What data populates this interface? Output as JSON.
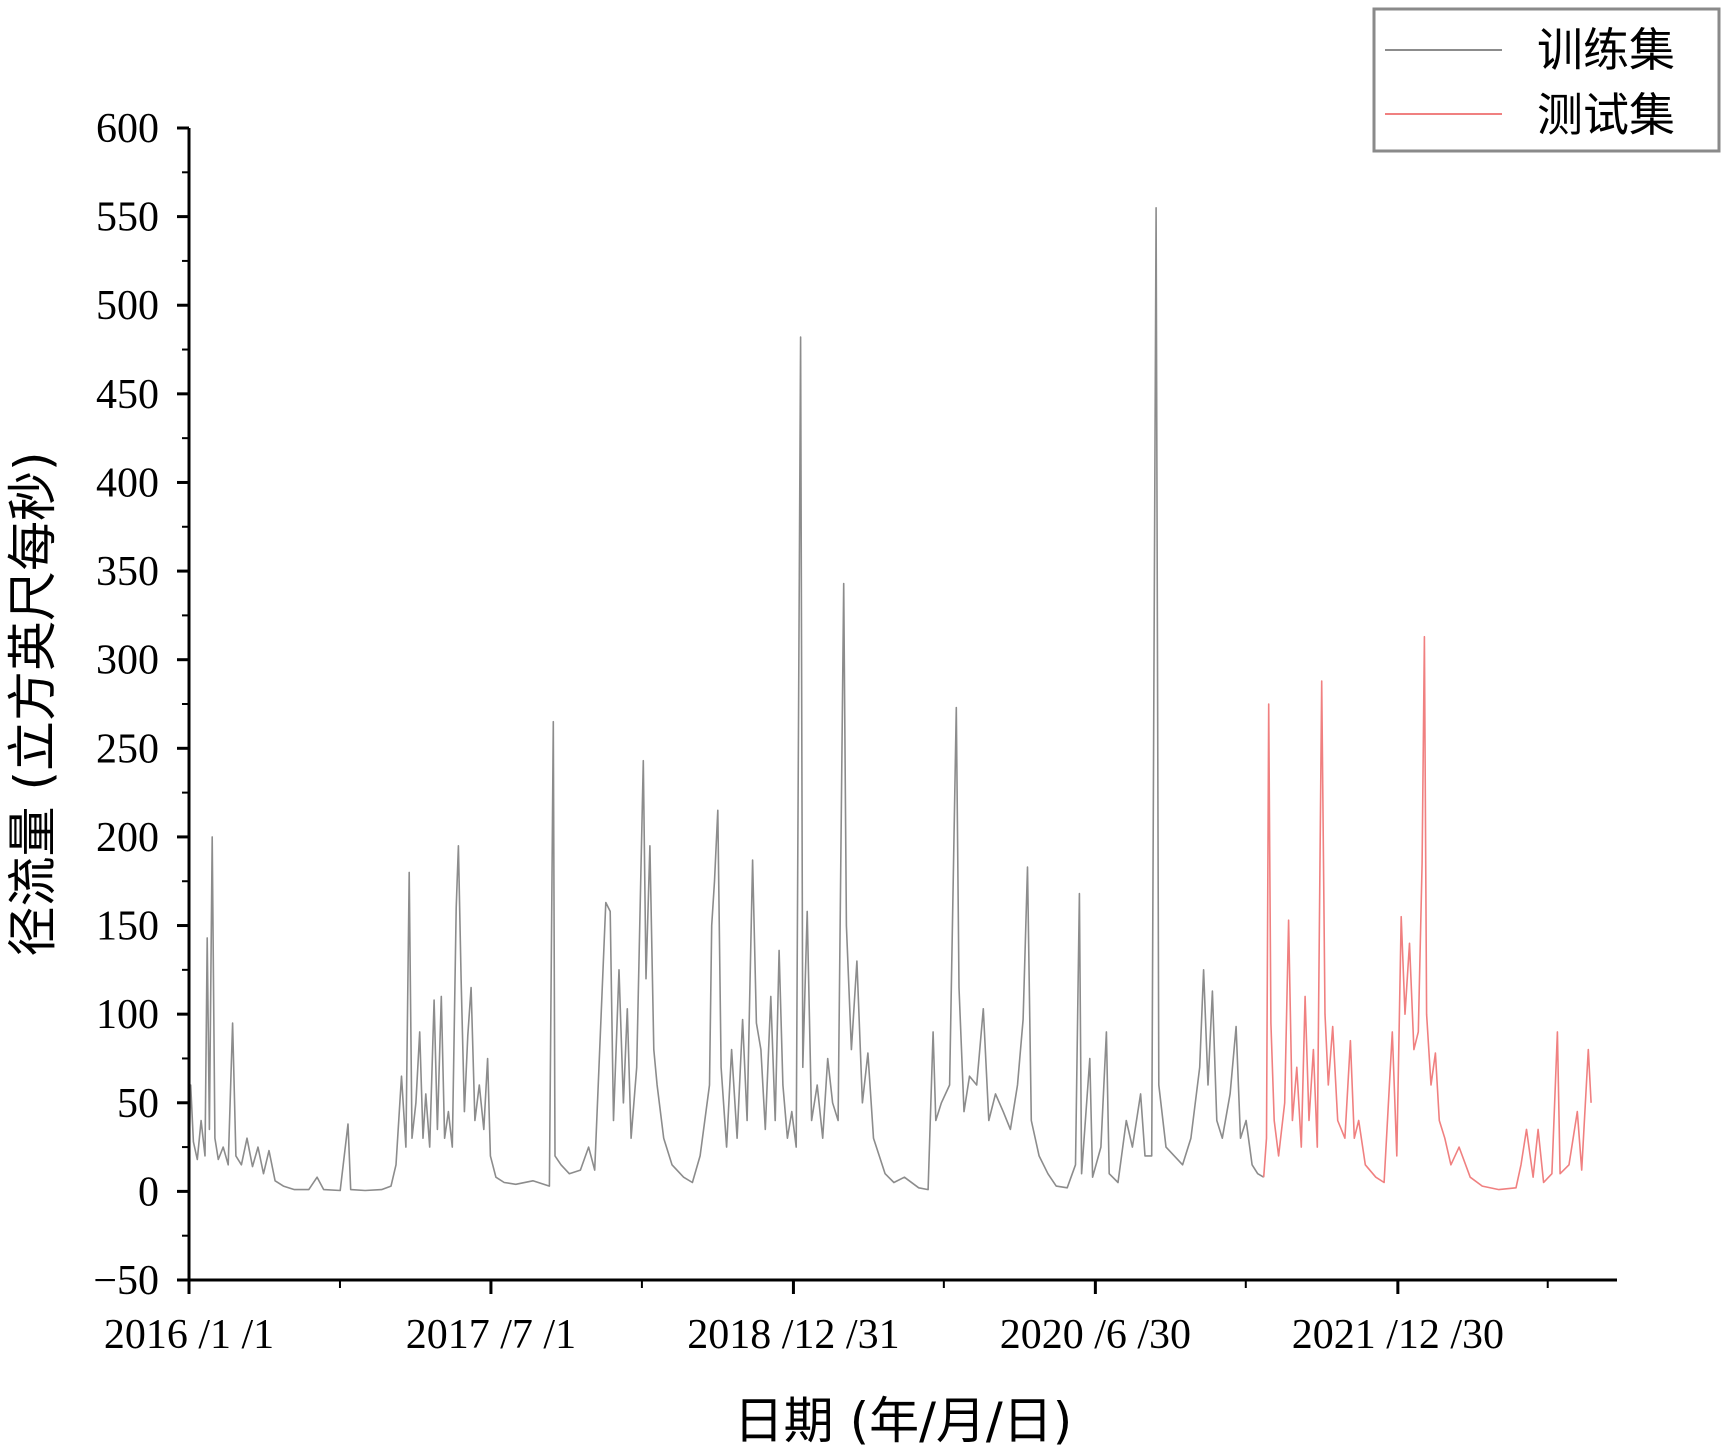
{
  "chart_data": {
    "type": "line",
    "xlabel": "日期 (年/月/日)",
    "ylabel": "径流量 (立方英尺每秒)",
    "ylim": [
      -50,
      600
    ],
    "yticks": [
      600,
      550,
      500,
      450,
      400,
      350,
      300,
      250,
      200,
      150,
      100,
      50,
      0,
      -50
    ],
    "ytick_labels": [
      "600",
      "550",
      "500",
      "450",
      "400",
      "350",
      "300",
      "250",
      "200",
      "150",
      "100",
      "50",
      "0",
      "−50"
    ],
    "xlim": [
      "2016-01-01",
      "2023-01-31"
    ],
    "xticks": [
      {
        "date": "2016-01-01",
        "label": "2016 /1 /1"
      },
      {
        "date": "2017-07-01",
        "label": "2017 /7 /1"
      },
      {
        "date": "2018-12-31",
        "label": "2018 /12 /31"
      },
      {
        "date": "2020-06-30",
        "label": "2020 /6 /30"
      },
      {
        "date": "2021-12-30",
        "label": "2021 /12 /30"
      }
    ],
    "legend_position": "top-right",
    "grid": false,
    "series": [
      {
        "name": "训练集",
        "color": "#8c8c8c",
        "points": [
          [
            "2016-01-01",
            20
          ],
          [
            "2016-01-04",
            60
          ],
          [
            "2016-01-09",
            28
          ],
          [
            "2016-01-16",
            18
          ],
          [
            "2016-01-23",
            40
          ],
          [
            "2016-01-30",
            20
          ],
          [
            "2016-02-03",
            143
          ],
          [
            "2016-02-07",
            35
          ],
          [
            "2016-02-12",
            200
          ],
          [
            "2016-02-17",
            30
          ],
          [
            "2016-02-23",
            18
          ],
          [
            "2016-03-03",
            25
          ],
          [
            "2016-03-12",
            15
          ],
          [
            "2016-03-20",
            95
          ],
          [
            "2016-03-26",
            20
          ],
          [
            "2016-04-05",
            15
          ],
          [
            "2016-04-15",
            30
          ],
          [
            "2016-04-25",
            14
          ],
          [
            "2016-05-05",
            25
          ],
          [
            "2016-05-15",
            10
          ],
          [
            "2016-05-25",
            23
          ],
          [
            "2016-06-05",
            6
          ],
          [
            "2016-06-20",
            3
          ],
          [
            "2016-07-10",
            1
          ],
          [
            "2016-08-05",
            1
          ],
          [
            "2016-08-20",
            8
          ],
          [
            "2016-09-01",
            1
          ],
          [
            "2016-10-01",
            0.5
          ],
          [
            "2016-10-15",
            38
          ],
          [
            "2016-10-20",
            1
          ],
          [
            "2016-11-15",
            0.5
          ],
          [
            "2016-12-15",
            1
          ],
          [
            "2017-01-01",
            3
          ],
          [
            "2017-01-10",
            15
          ],
          [
            "2017-01-20",
            65
          ],
          [
            "2017-01-28",
            25
          ],
          [
            "2017-02-03",
            180
          ],
          [
            "2017-02-08",
            30
          ],
          [
            "2017-02-15",
            50
          ],
          [
            "2017-02-22",
            90
          ],
          [
            "2017-02-28",
            30
          ],
          [
            "2017-03-05",
            55
          ],
          [
            "2017-03-12",
            25
          ],
          [
            "2017-03-20",
            108
          ],
          [
            "2017-03-26",
            35
          ],
          [
            "2017-04-02",
            110
          ],
          [
            "2017-04-08",
            30
          ],
          [
            "2017-04-15",
            45
          ],
          [
            "2017-04-22",
            25
          ],
          [
            "2017-04-29",
            160
          ],
          [
            "2017-05-03",
            195
          ],
          [
            "2017-05-08",
            120
          ],
          [
            "2017-05-14",
            45
          ],
          [
            "2017-05-20",
            88
          ],
          [
            "2017-05-26",
            115
          ],
          [
            "2017-06-02",
            40
          ],
          [
            "2017-06-10",
            60
          ],
          [
            "2017-06-18",
            35
          ],
          [
            "2017-06-25",
            75
          ],
          [
            "2017-06-30",
            20
          ],
          [
            "2017-07-10",
            8
          ],
          [
            "2017-07-25",
            5
          ],
          [
            "2017-08-15",
            4
          ],
          [
            "2017-09-15",
            6
          ],
          [
            "2017-10-15",
            3
          ],
          [
            "2017-10-22",
            265
          ],
          [
            "2017-10-25",
            20
          ],
          [
            "2017-11-05",
            15
          ],
          [
            "2017-11-20",
            10
          ],
          [
            "2017-12-10",
            12
          ],
          [
            "2017-12-25",
            25
          ],
          [
            "2018-01-05",
            12
          ],
          [
            "2018-01-25",
            163
          ],
          [
            "2018-02-02",
            158
          ],
          [
            "2018-02-08",
            40
          ],
          [
            "2018-02-18",
            125
          ],
          [
            "2018-02-26",
            50
          ],
          [
            "2018-03-05",
            103
          ],
          [
            "2018-03-12",
            30
          ],
          [
            "2018-03-22",
            70
          ],
          [
            "2018-04-03",
            243
          ],
          [
            "2018-04-08",
            120
          ],
          [
            "2018-04-15",
            195
          ],
          [
            "2018-04-22",
            80
          ],
          [
            "2018-04-28",
            60
          ],
          [
            "2018-05-10",
            30
          ],
          [
            "2018-05-25",
            15
          ],
          [
            "2018-06-15",
            8
          ],
          [
            "2018-07-01",
            5
          ],
          [
            "2018-07-15",
            20
          ],
          [
            "2018-08-01",
            60
          ],
          [
            "2018-08-05",
            150
          ],
          [
            "2018-08-10",
            175
          ],
          [
            "2018-08-16",
            215
          ],
          [
            "2018-08-22",
            70
          ],
          [
            "2018-09-01",
            25
          ],
          [
            "2018-09-10",
            80
          ],
          [
            "2018-09-20",
            30
          ],
          [
            "2018-09-30",
            97
          ],
          [
            "2018-10-08",
            40
          ],
          [
            "2018-10-18",
            187
          ],
          [
            "2018-10-25",
            95
          ],
          [
            "2018-11-02",
            80
          ],
          [
            "2018-11-10",
            35
          ],
          [
            "2018-11-20",
            110
          ],
          [
            "2018-11-28",
            40
          ],
          [
            "2018-12-05",
            136
          ],
          [
            "2018-12-12",
            60
          ],
          [
            "2018-12-20",
            30
          ],
          [
            "2018-12-28",
            45
          ],
          [
            "2019-01-05",
            25
          ],
          [
            "2019-01-13",
            482
          ],
          [
            "2019-01-17",
            70
          ],
          [
            "2019-01-25",
            158
          ],
          [
            "2019-02-02",
            40
          ],
          [
            "2019-02-12",
            60
          ],
          [
            "2019-02-22",
            30
          ],
          [
            "2019-03-03",
            75
          ],
          [
            "2019-03-12",
            50
          ],
          [
            "2019-03-22",
            40
          ],
          [
            "2019-04-01",
            343
          ],
          [
            "2019-04-06",
            150
          ],
          [
            "2019-04-15",
            80
          ],
          [
            "2019-04-25",
            130
          ],
          [
            "2019-05-05",
            50
          ],
          [
            "2019-05-15",
            78
          ],
          [
            "2019-05-25",
            30
          ],
          [
            "2019-06-15",
            10
          ],
          [
            "2019-07-01",
            5
          ],
          [
            "2019-07-20",
            8
          ],
          [
            "2019-08-15",
            2
          ],
          [
            "2019-09-01",
            1
          ],
          [
            "2019-09-10",
            90
          ],
          [
            "2019-09-15",
            40
          ],
          [
            "2019-09-25",
            50
          ],
          [
            "2019-10-10",
            60
          ],
          [
            "2019-10-22",
            273
          ],
          [
            "2019-10-27",
            115
          ],
          [
            "2019-11-05",
            45
          ],
          [
            "2019-11-15",
            65
          ],
          [
            "2019-11-28",
            60
          ],
          [
            "2019-12-10",
            103
          ],
          [
            "2019-12-20",
            40
          ],
          [
            "2020-01-01",
            55
          ],
          [
            "2020-01-15",
            45
          ],
          [
            "2020-01-28",
            35
          ],
          [
            "2020-02-10",
            60
          ],
          [
            "2020-02-20",
            97
          ],
          [
            "2020-02-28",
            183
          ],
          [
            "2020-03-06",
            40
          ],
          [
            "2020-03-20",
            20
          ],
          [
            "2020-04-05",
            10
          ],
          [
            "2020-04-20",
            3
          ],
          [
            "2020-05-10",
            2
          ],
          [
            "2020-05-25",
            15
          ],
          [
            "2020-06-01",
            168
          ],
          [
            "2020-06-05",
            10
          ],
          [
            "2020-06-20",
            75
          ],
          [
            "2020-06-25",
            8
          ],
          [
            "2020-07-10",
            25
          ],
          [
            "2020-07-20",
            90
          ],
          [
            "2020-07-25",
            10
          ],
          [
            "2020-08-10",
            5
          ],
          [
            "2020-08-25",
            40
          ],
          [
            "2020-09-05",
            25
          ],
          [
            "2020-09-20",
            55
          ],
          [
            "2020-09-28",
            20
          ],
          [
            "2020-10-10",
            20
          ],
          [
            "2020-10-18",
            555
          ],
          [
            "2020-10-23",
            60
          ],
          [
            "2020-11-05",
            25
          ],
          [
            "2020-11-20",
            20
          ],
          [
            "2020-12-05",
            15
          ],
          [
            "2020-12-20",
            30
          ],
          [
            "2021-01-05",
            70
          ],
          [
            "2021-01-12",
            125
          ],
          [
            "2021-01-20",
            60
          ],
          [
            "2021-01-28",
            113
          ],
          [
            "2021-02-05",
            40
          ],
          [
            "2021-02-15",
            30
          ],
          [
            "2021-03-01",
            55
          ],
          [
            "2021-03-12",
            93
          ],
          [
            "2021-03-20",
            30
          ],
          [
            "2021-03-30",
            40
          ],
          [
            "2021-04-10",
            15
          ],
          [
            "2021-04-20",
            10
          ],
          [
            "2021-05-01",
            8
          ]
        ]
      },
      {
        "name": "测试集",
        "color": "#f08080",
        "points": [
          [
            "2021-05-01",
            8
          ],
          [
            "2021-05-06",
            30
          ],
          [
            "2021-05-10",
            275
          ],
          [
            "2021-05-14",
            95
          ],
          [
            "2021-05-20",
            40
          ],
          [
            "2021-05-28",
            20
          ],
          [
            "2021-06-08",
            50
          ],
          [
            "2021-06-15",
            153
          ],
          [
            "2021-06-22",
            40
          ],
          [
            "2021-06-30",
            70
          ],
          [
            "2021-07-08",
            25
          ],
          [
            "2021-07-15",
            110
          ],
          [
            "2021-07-22",
            40
          ],
          [
            "2021-07-30",
            80
          ],
          [
            "2021-08-06",
            25
          ],
          [
            "2021-08-14",
            288
          ],
          [
            "2021-08-20",
            100
          ],
          [
            "2021-08-26",
            60
          ],
          [
            "2021-09-03",
            93
          ],
          [
            "2021-09-12",
            40
          ],
          [
            "2021-09-25",
            30
          ],
          [
            "2021-10-05",
            85
          ],
          [
            "2021-10-12",
            30
          ],
          [
            "2021-10-20",
            40
          ],
          [
            "2021-11-01",
            15
          ],
          [
            "2021-11-20",
            8
          ],
          [
            "2021-12-05",
            5
          ],
          [
            "2021-12-20",
            90
          ],
          [
            "2021-12-28",
            20
          ],
          [
            "2022-01-05",
            155
          ],
          [
            "2022-01-12",
            100
          ],
          [
            "2022-01-20",
            140
          ],
          [
            "2022-01-28",
            80
          ],
          [
            "2022-02-05",
            90
          ],
          [
            "2022-02-12",
            185
          ],
          [
            "2022-02-16",
            313
          ],
          [
            "2022-02-20",
            100
          ],
          [
            "2022-02-28",
            60
          ],
          [
            "2022-03-08",
            78
          ],
          [
            "2022-03-15",
            40
          ],
          [
            "2022-03-25",
            30
          ],
          [
            "2022-04-05",
            15
          ],
          [
            "2022-04-20",
            25
          ],
          [
            "2022-05-10",
            8
          ],
          [
            "2022-06-01",
            3
          ],
          [
            "2022-07-01",
            1
          ],
          [
            "2022-08-01",
            2
          ],
          [
            "2022-08-10",
            15
          ],
          [
            "2022-08-20",
            35
          ],
          [
            "2022-09-01",
            8
          ],
          [
            "2022-09-10",
            35
          ],
          [
            "2022-09-20",
            5
          ],
          [
            "2022-10-05",
            10
          ],
          [
            "2022-10-15",
            90
          ],
          [
            "2022-10-20",
            10
          ],
          [
            "2022-11-05",
            15
          ],
          [
            "2022-11-20",
            45
          ],
          [
            "2022-11-28",
            12
          ],
          [
            "2022-12-10",
            80
          ],
          [
            "2022-12-15",
            50
          ]
        ]
      }
    ]
  }
}
